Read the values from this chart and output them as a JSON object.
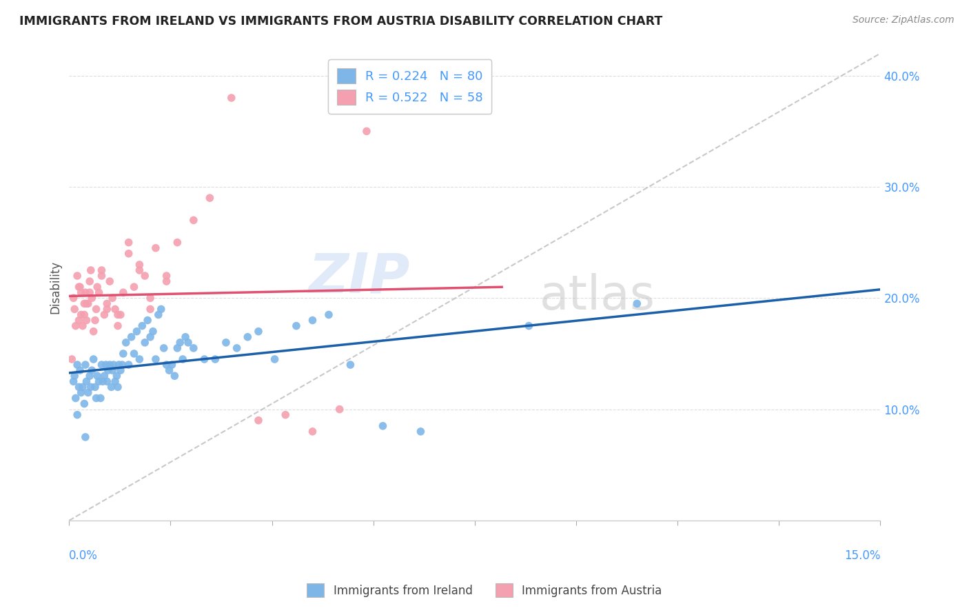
{
  "title": "IMMIGRANTS FROM IRELAND VS IMMIGRANTS FROM AUSTRIA DISABILITY CORRELATION CHART",
  "source": "Source: ZipAtlas.com",
  "ylabel": "Disability",
  "xlim": [
    0.0,
    15.0
  ],
  "ylim": [
    0.0,
    42.0
  ],
  "yticks": [
    10.0,
    20.0,
    30.0,
    40.0
  ],
  "ireland_color": "#7EB6E8",
  "austria_color": "#F4A0B0",
  "ireland_R": 0.224,
  "ireland_N": 80,
  "austria_R": 0.522,
  "austria_N": 58,
  "ireland_line_color": "#1A5FA8",
  "austria_line_color": "#E05070",
  "legend_label_ireland": "Immigrants from Ireland",
  "legend_label_austria": "Immigrants from Austria",
  "watermark_zip": "ZIP",
  "watermark_atlas": "atlas",
  "ireland_x": [
    0.08,
    0.1,
    0.12,
    0.15,
    0.18,
    0.2,
    0.22,
    0.25,
    0.28,
    0.3,
    0.32,
    0.35,
    0.38,
    0.4,
    0.42,
    0.45,
    0.48,
    0.5,
    0.52,
    0.55,
    0.58,
    0.6,
    0.62,
    0.65,
    0.68,
    0.7,
    0.72,
    0.75,
    0.78,
    0.8,
    0.82,
    0.85,
    0.88,
    0.9,
    0.92,
    0.95,
    0.98,
    1.0,
    1.05,
    1.1,
    1.15,
    1.2,
    1.25,
    1.3,
    1.35,
    1.4,
    1.45,
    1.5,
    1.55,
    1.6,
    1.65,
    1.7,
    1.75,
    1.8,
    1.85,
    1.9,
    1.95,
    2.0,
    2.05,
    2.1,
    2.15,
    2.2,
    2.3,
    2.5,
    2.7,
    2.9,
    3.1,
    3.3,
    3.5,
    3.8,
    4.2,
    4.5,
    4.8,
    5.2,
    5.8,
    6.5,
    8.5,
    10.5,
    0.15,
    0.3
  ],
  "ireland_y": [
    12.5,
    13.0,
    11.0,
    14.0,
    12.0,
    13.5,
    11.5,
    12.0,
    10.5,
    14.0,
    12.5,
    11.5,
    13.0,
    12.0,
    13.5,
    14.5,
    12.0,
    11.0,
    13.0,
    12.5,
    11.0,
    14.0,
    12.5,
    13.0,
    14.0,
    12.5,
    13.5,
    14.0,
    12.0,
    13.5,
    14.0,
    12.5,
    13.0,
    12.0,
    14.0,
    13.5,
    14.0,
    15.0,
    16.0,
    14.0,
    16.5,
    15.0,
    17.0,
    14.5,
    17.5,
    16.0,
    18.0,
    16.5,
    17.0,
    14.5,
    18.5,
    19.0,
    15.5,
    14.0,
    13.5,
    14.0,
    13.0,
    15.5,
    16.0,
    14.5,
    16.5,
    16.0,
    15.5,
    14.5,
    14.5,
    16.0,
    15.5,
    16.5,
    17.0,
    14.5,
    17.5,
    18.0,
    18.5,
    14.0,
    8.5,
    8.0,
    17.5,
    19.5,
    9.5,
    7.5
  ],
  "austria_x": [
    0.05,
    0.08,
    0.1,
    0.12,
    0.15,
    0.18,
    0.2,
    0.22,
    0.25,
    0.28,
    0.3,
    0.32,
    0.35,
    0.38,
    0.4,
    0.45,
    0.5,
    0.55,
    0.6,
    0.65,
    0.7,
    0.75,
    0.8,
    0.85,
    0.9,
    0.95,
    1.0,
    1.1,
    1.2,
    1.3,
    1.4,
    1.5,
    1.6,
    1.8,
    2.0,
    2.3,
    2.6,
    3.0,
    3.5,
    4.0,
    4.5,
    5.0,
    5.5,
    0.18,
    0.22,
    0.28,
    0.32,
    0.38,
    0.42,
    0.48,
    0.52,
    0.6,
    0.7,
    0.9,
    1.1,
    1.3,
    1.5,
    1.8
  ],
  "austria_y": [
    14.5,
    20.0,
    19.0,
    17.5,
    22.0,
    18.0,
    21.0,
    18.5,
    17.5,
    19.5,
    20.5,
    18.0,
    19.5,
    20.5,
    22.5,
    17.0,
    19.0,
    20.5,
    22.0,
    18.5,
    19.0,
    21.5,
    20.0,
    19.0,
    17.5,
    18.5,
    20.5,
    25.0,
    21.0,
    22.5,
    22.0,
    19.0,
    24.5,
    21.5,
    25.0,
    27.0,
    29.0,
    38.0,
    9.0,
    9.5,
    8.0,
    10.0,
    35.0,
    21.0,
    20.5,
    18.5,
    19.5,
    21.5,
    20.0,
    18.0,
    21.0,
    22.5,
    19.5,
    18.5,
    24.0,
    23.0,
    20.0,
    22.0
  ]
}
